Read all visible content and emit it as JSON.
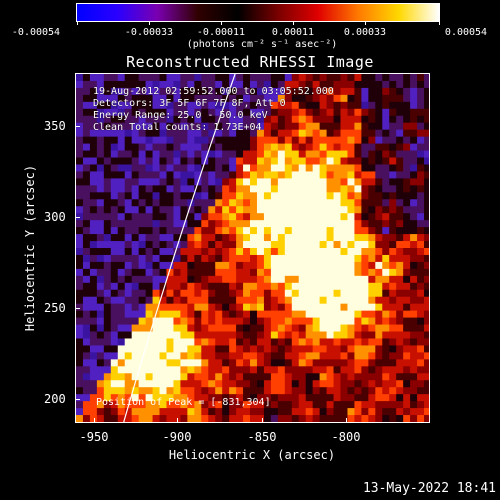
{
  "colorbar": {
    "gradient_colors": [
      "#0000ff",
      "#2a00ff",
      "#7a00b0",
      "#300000",
      "#000000",
      "#7a0000",
      "#e00000",
      "#ff7a00",
      "#ffd800",
      "#ffffff"
    ],
    "ticks": [
      "-0.00054",
      "-0.00033",
      "-0.00011",
      "0.00011",
      "0.00033",
      "0.00054"
    ],
    "units": "(photons cm⁻² s⁻¹ asec⁻²)"
  },
  "title": "Reconstructed RHESSI Image",
  "info": {
    "time_range": "19-Aug-2012 02:59:52.000 to 03:05:52.000",
    "detectors": "Detectors: 3F 5F 6F 7F 8F, Att 0",
    "energy": "Energy Range: 25.0 - 50.0 keV",
    "clean": "Clean     Total counts: 1.73E+04"
  },
  "peak": "Position of Peak = [-831,304]",
  "axes": {
    "x_label": "Heliocentric X (arcsec)",
    "y_label": "Heliocentric Y (arcsec)",
    "x_ticks": [
      "-950",
      "-900",
      "-850",
      "-800"
    ],
    "y_ticks": [
      "350",
      "300",
      "250",
      "200"
    ]
  },
  "footer": "13-May-2022 18:41"
}
